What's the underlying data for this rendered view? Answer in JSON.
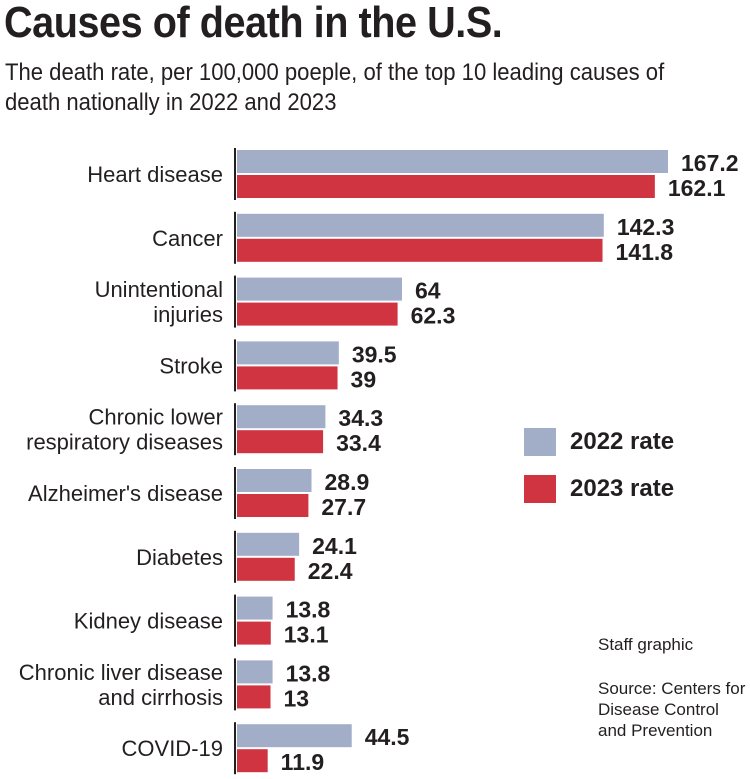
{
  "chart_data": {
    "type": "bar",
    "orientation": "horizontal",
    "title": "Causes of death in the U.S.",
    "subtitle": "The death rate, per 100,000 poeple, of the top 10 leading causes of death nationally in 2022 and 2023",
    "categories": [
      [
        "Heart disease"
      ],
      [
        "Cancer"
      ],
      [
        "Unintentional",
        "injuries"
      ],
      [
        "Stroke"
      ],
      [
        "Chronic lower",
        "respiratory diseases"
      ],
      [
        "Alzheimer's disease"
      ],
      [
        "Diabetes"
      ],
      [
        "Kidney disease"
      ],
      [
        "Chronic liver disease",
        "and cirrhosis"
      ],
      [
        "COVID-19"
      ]
    ],
    "series": [
      {
        "name": "2022 rate",
        "color": "#a2aec8",
        "values": [
          167.2,
          142.3,
          64,
          39.5,
          34.3,
          28.9,
          24.1,
          13.8,
          13.8,
          44.5
        ]
      },
      {
        "name": "2023 rate",
        "color": "#cf3440",
        "values": [
          162.1,
          141.8,
          62.3,
          39,
          33.4,
          27.7,
          22.4,
          13.1,
          13,
          11.9
        ]
      }
    ],
    "value_labels": [
      [
        "167.2",
        "142.3",
        "64",
        "39.5",
        "34.3",
        "28.9",
        "24.1",
        "13.8",
        "13.8",
        "44.5"
      ],
      [
        "162.1",
        "141.8",
        "62.3",
        "39",
        "33.4",
        "27.7",
        "22.4",
        "13.1",
        "13",
        "11.9"
      ]
    ],
    "legend_placement": "right",
    "grid": false,
    "xlim": [
      0,
      175
    ]
  },
  "credit": "Staff graphic",
  "source": "Source: Centers for Disease Control and Prevention"
}
